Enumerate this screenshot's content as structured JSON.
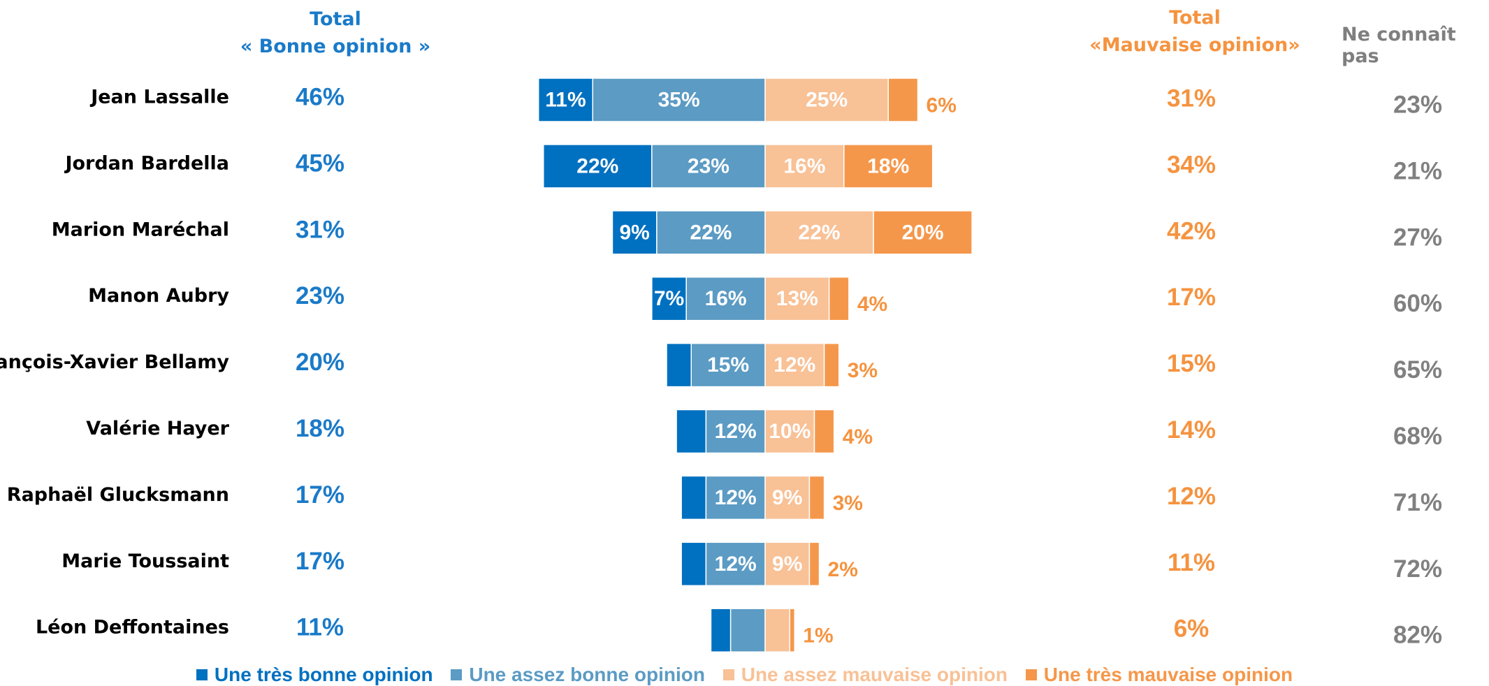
{
  "headers": {
    "total_good_line1": "Total",
    "total_good_line2": "« Bonne opinion »",
    "total_bad_line1": "Total",
    "total_bad_line2": "«Mauvaise opinion»",
    "not_known": "Ne connaît pas"
  },
  "colors": {
    "tres_bonne": "#0070c0",
    "assez_bonne": "#5b9bc4",
    "assez_mauvaise": "#f8c196",
    "tres_mauvaise": "#f5974a",
    "good_text": "#1a7ac8",
    "bad_text": "#f5933f",
    "nk_text": "#808080"
  },
  "legend": [
    {
      "label": "Une très bonne opinion",
      "color": "#0070c0"
    },
    {
      "label": "Une assez bonne opinion",
      "color": "#5b9bc4"
    },
    {
      "label": "Une assez mauvaise opinion",
      "color": "#f8c196"
    },
    {
      "label": "Une très mauvaise opinion",
      "color": "#f5974a"
    }
  ],
  "chart_data": {
    "type": "bar",
    "orientation": "horizontal-diverging",
    "categories": [
      "Jean Lassalle",
      "Jordan Bardella",
      "Marion Maréchal",
      "Manon Aubry",
      "François-Xavier Bellamy",
      "Valérie Hayer",
      "Raphaël Glucksmann",
      "Marie Toussaint",
      "Léon Deffontaines"
    ],
    "series": [
      {
        "name": "Une très bonne opinion",
        "values": [
          11,
          22,
          9,
          7,
          5,
          6,
          5,
          5,
          4
        ],
        "labels": [
          "11%",
          "22%",
          "9%",
          "7%",
          "",
          "",
          "",
          "",
          ""
        ]
      },
      {
        "name": "Une assez bonne opinion",
        "values": [
          35,
          23,
          22,
          16,
          15,
          12,
          12,
          12,
          7
        ],
        "labels": [
          "35%",
          "23%",
          "22%",
          "16%",
          "15%",
          "12%",
          "12%",
          "12%",
          "7%"
        ]
      },
      {
        "name": "Une assez mauvaise opinion",
        "values": [
          25,
          16,
          22,
          13,
          12,
          10,
          9,
          9,
          5
        ],
        "labels": [
          "25%",
          "16%",
          "22%",
          "13%",
          "12%",
          "10%",
          "9%",
          "9%",
          "5%"
        ]
      },
      {
        "name": "Une très mauvaise opinion",
        "values": [
          6,
          18,
          20,
          4,
          3,
          4,
          3,
          2,
          1
        ],
        "labels": [
          "6%",
          "18%",
          "20%",
          "4%",
          "3%",
          "4%",
          "3%",
          "2%",
          "1%"
        ]
      }
    ],
    "total_good": [
      "46%",
      "45%",
      "31%",
      "23%",
      "20%",
      "18%",
      "17%",
      "17%",
      "11%"
    ],
    "total_bad": [
      "31%",
      "34%",
      "42%",
      "17%",
      "15%",
      "14%",
      "12%",
      "11%",
      "6%"
    ],
    "not_known": [
      "23%",
      "21%",
      "27%",
      "60%",
      "65%",
      "68%",
      "71%",
      "72%",
      "82%"
    ]
  }
}
